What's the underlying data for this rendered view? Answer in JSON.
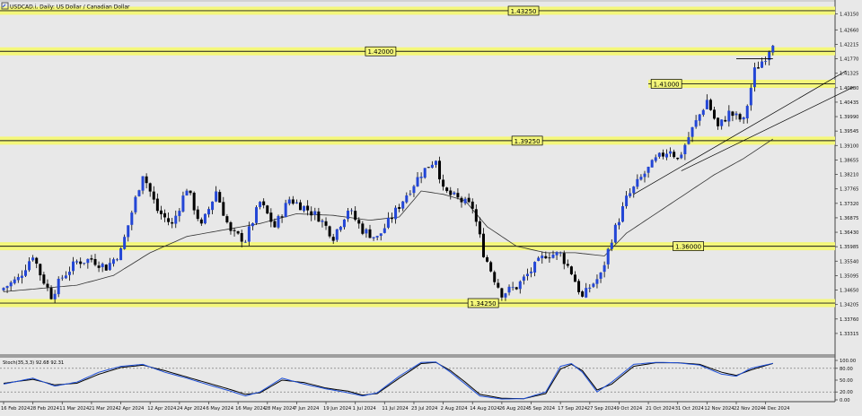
{
  "header": {
    "title": "USDCAD.i, Daily:  US Dollar / Canadian Dollar",
    "icon": "chart-window-icon"
  },
  "colors": {
    "background": "#e8e8e8",
    "bull_candle": "#2346d6",
    "bear_candle": "#000000",
    "level_band": "#f4f77a",
    "level_line": "#1a1a1a",
    "moving_average": "#333333",
    "stoch_main": "#1e4fd8",
    "stoch_signal": "#000000",
    "trendline": "#000000"
  },
  "chart_data": [
    {
      "type": "candlestick",
      "symbol": "USDCAD.i",
      "timeframe": "Daily",
      "price_axis": {
        "ylim": [
          1.3265,
          1.4358
        ],
        "ticks": [
          "1.43585",
          "1.43150",
          "1.42660",
          "1.42215",
          "1.41770",
          "1.41325",
          "1.40880",
          "1.40435",
          "1.39990",
          "1.39545",
          "1.39100",
          "1.38655",
          "1.38210",
          "1.37765",
          "1.37320",
          "1.36875",
          "1.36430",
          "1.35985",
          "1.35540",
          "1.35095",
          "1.34650",
          "1.34205",
          "1.33760",
          "1.33315"
        ],
        "tick_values": [
          1.43585,
          1.4315,
          1.4266,
          1.42215,
          1.4177,
          1.41325,
          1.4088,
          1.40435,
          1.3999,
          1.39545,
          1.391,
          1.38655,
          1.3821,
          1.37765,
          1.3732,
          1.36875,
          1.3643,
          1.35985,
          1.3554,
          1.35095,
          1.3465,
          1.34205,
          1.3376,
          1.33315
        ]
      },
      "time_axis": {
        "labels": [
          "16 Feb 2024",
          "28 Feb 2024",
          "11 Mar 2024",
          "21 Mar 2024",
          "2 Apr 2024",
          "12 Apr 2024",
          "24 Apr 2024",
          "6 May 2024",
          "16 May 2024",
          "28 May 2024",
          "7 Jun 2024",
          "19 Jun 2024",
          "1 Jul 2024",
          "11 Jul 2024",
          "23 Jul 2024",
          "2 Aug 2024",
          "14 Aug 2024",
          "26 Aug 2024",
          "5 Sep 2024",
          "17 Sep 2024",
          "27 Sep 2024",
          "9 Oct 2024",
          "21 Oct 2024",
          "31 Oct 2024",
          "12 Nov 2024",
          "22 Nov 2024",
          "4 Dec 2024"
        ],
        "label_bar_index": [
          0,
          8,
          16,
          24,
          32,
          40,
          48,
          56,
          64,
          72,
          80,
          88,
          96,
          104,
          112,
          120,
          128,
          136,
          144,
          152,
          160,
          168,
          176,
          184,
          192,
          200,
          208
        ]
      },
      "close_anchors": [
        [
          0,
          1.3472
        ],
        [
          4,
          1.35
        ],
        [
          8,
          1.3575
        ],
        [
          10,
          1.3515
        ],
        [
          13,
          1.3448
        ],
        [
          16,
          1.3505
        ],
        [
          20,
          1.3552
        ],
        [
          24,
          1.356
        ],
        [
          28,
          1.3535
        ],
        [
          32,
          1.3585
        ],
        [
          36,
          1.3745
        ],
        [
          38,
          1.3825
        ],
        [
          42,
          1.371
        ],
        [
          46,
          1.3665
        ],
        [
          50,
          1.378
        ],
        [
          54,
          1.366
        ],
        [
          58,
          1.377
        ],
        [
          62,
          1.364
        ],
        [
          66,
          1.362
        ],
        [
          70,
          1.3735
        ],
        [
          74,
          1.366
        ],
        [
          78,
          1.3745
        ],
        [
          82,
          1.372
        ],
        [
          86,
          1.369
        ],
        [
          90,
          1.363
        ],
        [
          94,
          1.3715
        ],
        [
          98,
          1.365
        ],
        [
          102,
          1.3625
        ],
        [
          106,
          1.369
        ],
        [
          110,
          1.376
        ],
        [
          114,
          1.3825
        ],
        [
          118,
          1.387
        ],
        [
          120,
          1.377
        ],
        [
          124,
          1.3745
        ],
        [
          128,
          1.372
        ],
        [
          131,
          1.358
        ],
        [
          134,
          1.35
        ],
        [
          136,
          1.3455
        ],
        [
          140,
          1.3475
        ],
        [
          144,
          1.3525
        ],
        [
          148,
          1.3575
        ],
        [
          152,
          1.3575
        ],
        [
          155,
          1.352
        ],
        [
          158,
          1.344
        ],
        [
          160,
          1.3475
        ],
        [
          163,
          1.351
        ],
        [
          166,
          1.3625
        ],
        [
          170,
          1.3745
        ],
        [
          174,
          1.381
        ],
        [
          178,
          1.3865
        ],
        [
          182,
          1.39
        ],
        [
          184,
          1.3865
        ],
        [
          188,
          1.396
        ],
        [
          192,
          1.405
        ],
        [
          195,
          1.3965
        ],
        [
          198,
          1.401
        ],
        [
          202,
          1.3985
        ],
        [
          205,
          1.414
        ],
        [
          208,
          1.4185
        ],
        [
          210,
          1.423
        ]
      ],
      "total_bars": 211,
      "moving_average": {
        "anchors": [
          [
            0,
            1.346
          ],
          [
            20,
            1.348
          ],
          [
            30,
            1.351
          ],
          [
            40,
            1.358
          ],
          [
            50,
            1.363
          ],
          [
            60,
            1.365
          ],
          [
            70,
            1.367
          ],
          [
            80,
            1.37
          ],
          [
            90,
            1.3695
          ],
          [
            100,
            1.368
          ],
          [
            108,
            1.369
          ],
          [
            114,
            1.377
          ],
          [
            120,
            1.376
          ],
          [
            126,
            1.374
          ],
          [
            132,
            1.366
          ],
          [
            140,
            1.36
          ],
          [
            148,
            1.358
          ],
          [
            156,
            1.358
          ],
          [
            164,
            1.357
          ],
          [
            170,
            1.364
          ],
          [
            178,
            1.37
          ],
          [
            186,
            1.376
          ],
          [
            194,
            1.382
          ],
          [
            202,
            1.387
          ],
          [
            210,
            1.393
          ]
        ]
      },
      "trendlines": [
        {
          "from": [
            172,
            1.376
          ],
          "to": [
            230,
            1.414
          ]
        },
        {
          "from": [
            185,
            1.3832
          ],
          "to": [
            232,
            1.409
          ]
        }
      ],
      "swing_line": {
        "from": [
          200,
          1.4177
        ],
        "to": [
          210,
          1.4177
        ]
      },
      "levels": [
        {
          "value": 1.4325,
          "label": "1.43250",
          "label_x_bar": 138,
          "band_end_bar": 235
        },
        {
          "value": 1.42,
          "label": "1.42000",
          "label_x_bar": 99,
          "band_end_bar": 235
        },
        {
          "value": 1.41,
          "label": "1.41000",
          "label_x_bar": 177,
          "band_start_bar": 176,
          "band_end_bar": 235
        },
        {
          "value": 1.3925,
          "label": "1.39250",
          "label_x_bar": 139,
          "band_end_bar": 235
        },
        {
          "value": 1.36,
          "label": "1.36000",
          "label_x_bar": 183,
          "band_end_bar": 228
        },
        {
          "value": 1.3425,
          "label": "1.34250",
          "label_x_bar": 127,
          "band_end_bar": 230
        }
      ]
    },
    {
      "type": "line",
      "title": "Stoch(35,3,3) 92.68 92.31",
      "ylim": [
        0,
        100
      ],
      "ticks": [
        "100.00",
        "80.00",
        "50.00",
        "20.00",
        "0.00"
      ],
      "tick_values": [
        100,
        80,
        50,
        20,
        0
      ],
      "levels": [
        80,
        20
      ],
      "main_anchors": [
        [
          0,
          40
        ],
        [
          8,
          55
        ],
        [
          14,
          35
        ],
        [
          20,
          45
        ],
        [
          26,
          70
        ],
        [
          32,
          85
        ],
        [
          38,
          90
        ],
        [
          44,
          70
        ],
        [
          50,
          55
        ],
        [
          56,
          38
        ],
        [
          62,
          22
        ],
        [
          66,
          10
        ],
        [
          70,
          20
        ],
        [
          76,
          55
        ],
        [
          82,
          40
        ],
        [
          88,
          28
        ],
        [
          94,
          18
        ],
        [
          98,
          10
        ],
        [
          102,
          18
        ],
        [
          108,
          60
        ],
        [
          114,
          95
        ],
        [
          118,
          96
        ],
        [
          122,
          70
        ],
        [
          126,
          40
        ],
        [
          130,
          10
        ],
        [
          136,
          2
        ],
        [
          142,
          3
        ],
        [
          148,
          20
        ],
        [
          152,
          85
        ],
        [
          155,
          92
        ],
        [
          158,
          70
        ],
        [
          162,
          20
        ],
        [
          166,
          45
        ],
        [
          172,
          90
        ],
        [
          178,
          95
        ],
        [
          184,
          94
        ],
        [
          190,
          88
        ],
        [
          196,
          65
        ],
        [
          200,
          60
        ],
        [
          204,
          80
        ],
        [
          210,
          92.68
        ]
      ],
      "signal_anchors": [
        [
          0,
          42
        ],
        [
          8,
          52
        ],
        [
          14,
          38
        ],
        [
          20,
          42
        ],
        [
          26,
          65
        ],
        [
          32,
          82
        ],
        [
          38,
          88
        ],
        [
          44,
          74
        ],
        [
          50,
          58
        ],
        [
          56,
          42
        ],
        [
          62,
          26
        ],
        [
          66,
          14
        ],
        [
          70,
          18
        ],
        [
          76,
          50
        ],
        [
          82,
          44
        ],
        [
          88,
          30
        ],
        [
          94,
          22
        ],
        [
          98,
          12
        ],
        [
          102,
          16
        ],
        [
          108,
          55
        ],
        [
          114,
          92
        ],
        [
          118,
          95
        ],
        [
          122,
          74
        ],
        [
          126,
          45
        ],
        [
          130,
          14
        ],
        [
          136,
          4
        ],
        [
          142,
          3
        ],
        [
          148,
          16
        ],
        [
          152,
          78
        ],
        [
          155,
          90
        ],
        [
          158,
          74
        ],
        [
          162,
          25
        ],
        [
          166,
          40
        ],
        [
          172,
          85
        ],
        [
          178,
          94
        ],
        [
          184,
          94
        ],
        [
          190,
          90
        ],
        [
          196,
          70
        ],
        [
          200,
          62
        ],
        [
          204,
          76
        ],
        [
          210,
          92.31
        ]
      ]
    }
  ]
}
